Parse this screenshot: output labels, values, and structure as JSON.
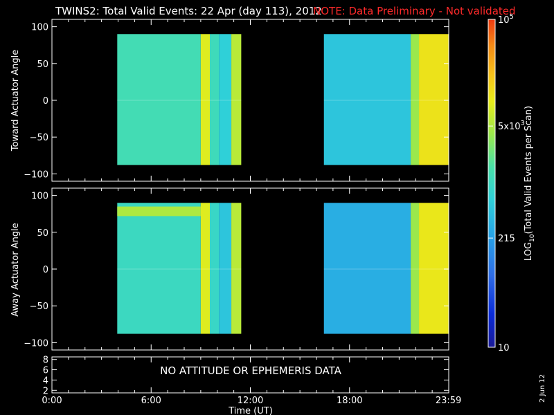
{
  "header": {
    "title": "TWINS2: Total Valid Events: 22 Apr (day 113), 2012",
    "note": "NOTE: Data Preliminary - Not validated"
  },
  "colors": {
    "background": "#000000",
    "axes": "#ffffff",
    "note": "#ff2a2a",
    "colormap": [
      "#1a1a96",
      "#0a2bd8",
      "#2f6de6",
      "#27a3e6",
      "#2fd0d8",
      "#49e0a8",
      "#9be84c",
      "#e8ec1a",
      "#f6c21a",
      "#f48a16",
      "#ee3a10"
    ]
  },
  "chart_data": [
    {
      "type": "heatmap",
      "name": "toward",
      "ylabel": "Toward Actuator Angle",
      "xlim": [
        0,
        24
      ],
      "ylim": [
        -110,
        110
      ],
      "yticks": [
        100,
        50,
        0,
        -50,
        -100
      ],
      "ytick_labels": [
        "100",
        "50",
        "0",
        "−50",
        "−100"
      ],
      "data_ranges_hours": [
        [
          3.95,
          11.45
        ],
        [
          16.45,
          23.98
        ]
      ],
      "angle_range": [
        -88,
        90
      ],
      "time_blocks": [
        {
          "t0": 3.95,
          "t1": 9.0,
          "log10": 2.9
        },
        {
          "t0": 9.0,
          "t1": 9.55,
          "log10": 3.75
        },
        {
          "t0": 9.55,
          "t1": 10.1,
          "log10": 2.85
        },
        {
          "t0": 10.1,
          "t1": 10.85,
          "log10": 2.6
        },
        {
          "t0": 10.85,
          "t1": 11.45,
          "log10": 3.55
        },
        {
          "t0": 16.45,
          "t1": 21.7,
          "log10": 2.5
        },
        {
          "t0": 21.7,
          "t1": 22.2,
          "log10": 3.4
        },
        {
          "t0": 22.2,
          "t1": 23.98,
          "log10": 3.9
        }
      ]
    },
    {
      "type": "heatmap",
      "name": "away",
      "ylabel": "Away Actuator Angle",
      "xlim": [
        0,
        24
      ],
      "ylim": [
        -110,
        110
      ],
      "yticks": [
        100,
        50,
        0,
        -50,
        -100
      ],
      "ytick_labels": [
        "100",
        "50",
        "0",
        "−50",
        "−100"
      ],
      "data_ranges_hours": [
        [
          3.95,
          11.45
        ],
        [
          16.45,
          23.98
        ]
      ],
      "angle_range": [
        -88,
        90
      ],
      "time_blocks": [
        {
          "t0": 3.95,
          "t1": 9.0,
          "log10": 2.8
        },
        {
          "t0": 9.0,
          "t1": 9.55,
          "log10": 3.75
        },
        {
          "t0": 9.55,
          "t1": 10.1,
          "log10": 2.75
        },
        {
          "t0": 10.1,
          "t1": 10.85,
          "log10": 2.5
        },
        {
          "t0": 10.85,
          "t1": 11.45,
          "log10": 3.55
        },
        {
          "t0": 16.45,
          "t1": 21.7,
          "log10": 2.3
        },
        {
          "t0": 21.7,
          "t1": 22.2,
          "log10": 3.4
        },
        {
          "t0": 22.2,
          "t1": 23.98,
          "log10": 3.85
        }
      ],
      "band": {
        "angle0": 72,
        "angle1": 85,
        "t0": 3.95,
        "t1": 9.0,
        "log10": 3.5
      }
    },
    {
      "type": "table",
      "name": "ephemeris",
      "ylim": [
        1.5,
        8.5
      ],
      "yticks": [
        2,
        4,
        6,
        8
      ],
      "ytick_labels": [
        "2",
        "4",
        "6",
        "8"
      ],
      "message": "NO ATTITUDE OR EPHEMERIS DATA"
    }
  ],
  "xaxis": {
    "label": "Time (UT)",
    "ticks": [
      0,
      6,
      12,
      18,
      23.983
    ],
    "tick_labels": [
      "0:00",
      "6:00",
      "12:00",
      "18:00",
      "23:59"
    ]
  },
  "colorbar": {
    "label_prefix": "LOG",
    "label_sub": "10",
    "label_suffix": "(Total Valid Events per Scan)",
    "range_log10": [
      1,
      5
    ],
    "ticks": [
      {
        "log10": 5,
        "base": "10",
        "exp": "5"
      },
      {
        "log10": 3.699,
        "base": "5x10",
        "exp": "3"
      },
      {
        "log10": 2.332,
        "base": "215",
        "exp": ""
      },
      {
        "log10": 1,
        "base": "10",
        "exp": ""
      }
    ]
  },
  "stamp": "2 Jun 12"
}
